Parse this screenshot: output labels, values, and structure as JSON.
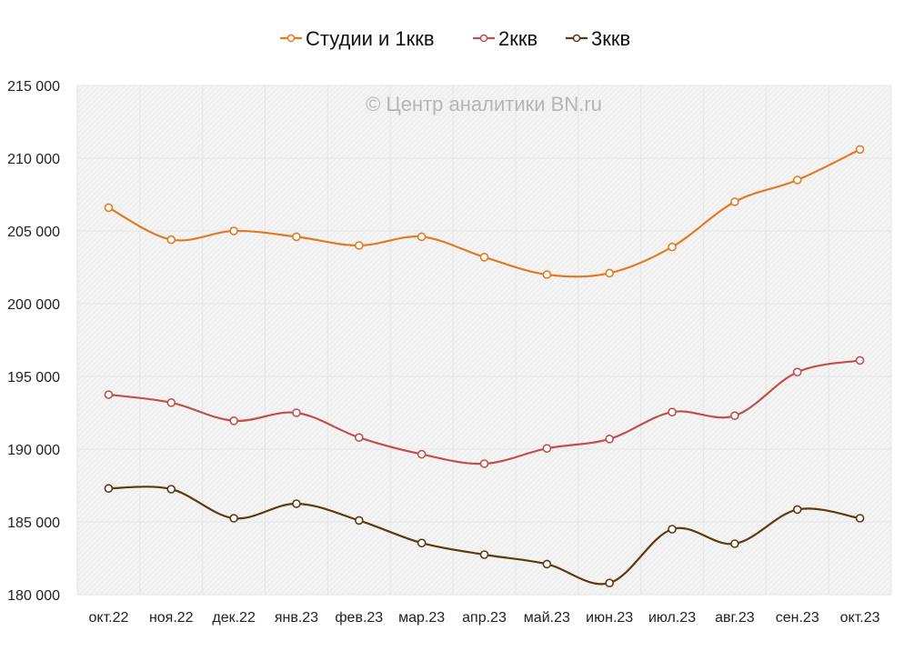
{
  "chart_data": {
    "type": "line",
    "title": "",
    "watermark": "© Центр аналитики BN.ru",
    "categories": [
      "окт.22",
      "ноя.22",
      "дек.22",
      "янв.23",
      "фев.23",
      "мар.23",
      "апр.23",
      "май.23",
      "июн.23",
      "июл.23",
      "авг.23",
      "сен.23",
      "окт.23"
    ],
    "ylim": [
      180000,
      215000
    ],
    "yticks": [
      180000,
      185000,
      190000,
      195000,
      200000,
      205000,
      210000,
      215000
    ],
    "ytick_labels": [
      "180 000",
      "185 000",
      "190 000",
      "195 000",
      "200 000",
      "205 000",
      "210 000",
      "215 000"
    ],
    "legend_position": "top",
    "grid": true,
    "series": [
      {
        "name": "Студии и 1ккв",
        "color": "#E07B22",
        "values": [
          206600,
          204400,
          205000,
          204600,
          204000,
          204600,
          203200,
          202000,
          202100,
          203900,
          207000,
          208500,
          210600
        ]
      },
      {
        "name": "2ккв",
        "color": "#C0504D",
        "values": [
          193750,
          193200,
          191950,
          192500,
          190800,
          189650,
          189000,
          190050,
          190700,
          192550,
          192300,
          195300,
          196100
        ]
      },
      {
        "name": "3ккв",
        "color": "#5C3A0E",
        "values": [
          187300,
          187250,
          185250,
          186250,
          185100,
          183550,
          182750,
          182100,
          180800,
          184500,
          183500,
          185850,
          185250
        ]
      }
    ]
  }
}
